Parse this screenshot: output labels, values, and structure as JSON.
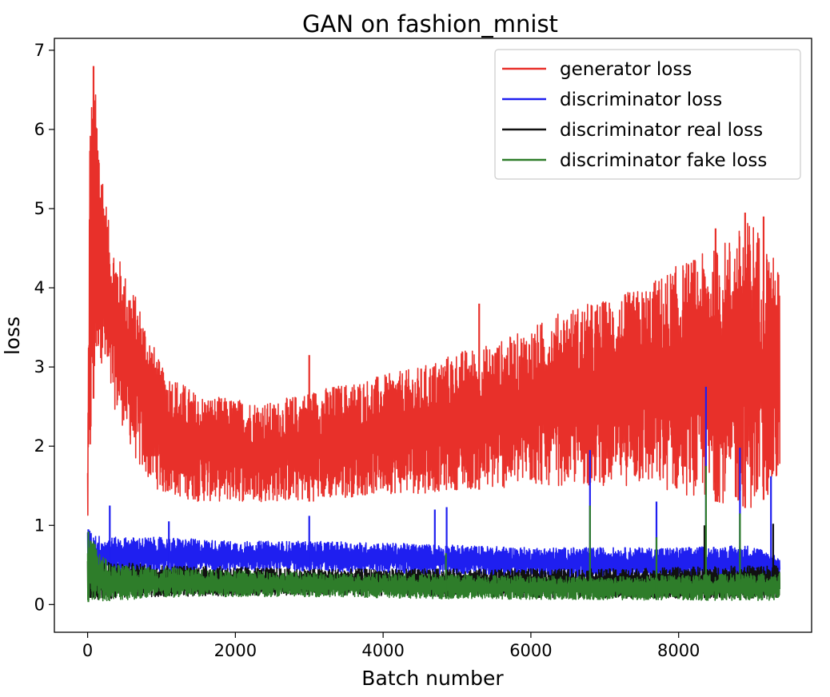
{
  "chart_data": {
    "type": "line",
    "title": "GAN on fashion_mnist",
    "xlabel": "Batch number",
    "ylabel": "loss",
    "xlim": [
      -450,
      9800
    ],
    "ylim": [
      -0.35,
      7.15
    ],
    "xticks": [
      0,
      2000,
      4000,
      6000,
      8000
    ],
    "xtick_labels": [
      "0",
      "2000",
      "4000",
      "6000",
      "8000"
    ],
    "yticks": [
      0,
      1,
      2,
      3,
      4,
      5,
      6,
      7
    ],
    "ytick_labels": [
      "0",
      "1",
      "2",
      "3",
      "4",
      "5",
      "6",
      "7"
    ],
    "grid": false,
    "legend_position": "top-right",
    "num_points": 9370,
    "series": [
      {
        "name": "generator loss",
        "color": "#e8302a",
        "envelope": {
          "x": [
            0,
            30,
            80,
            150,
            300,
            500,
            700,
            1000,
            1500,
            2000,
            2500,
            3000,
            3500,
            4000,
            4500,
            5000,
            5500,
            6000,
            6500,
            7000,
            7500,
            8000,
            8500,
            9000,
            9370
          ],
          "low": [
            0.9,
            1.4,
            2.6,
            3.2,
            2.6,
            2.2,
            1.7,
            1.4,
            1.3,
            1.3,
            1.3,
            1.3,
            1.35,
            1.4,
            1.4,
            1.45,
            1.45,
            1.5,
            1.5,
            1.5,
            1.5,
            1.4,
            1.3,
            1.2,
            1.5
          ],
          "high": [
            1.8,
            6.3,
            6.8,
            6.0,
            4.7,
            4.2,
            3.8,
            3.0,
            2.65,
            2.6,
            2.55,
            2.7,
            2.8,
            2.9,
            3.0,
            3.2,
            3.3,
            3.5,
            3.75,
            3.85,
            4.0,
            4.3,
            4.5,
            4.9,
            4.25
          ]
        },
        "spikes": [
          {
            "x": 80,
            "y": 6.8
          },
          {
            "x": 3000,
            "y": 3.15
          },
          {
            "x": 5300,
            "y": 3.8
          },
          {
            "x": 8500,
            "y": 4.75
          },
          {
            "x": 8900,
            "y": 4.95
          },
          {
            "x": 9150,
            "y": 4.9
          }
        ]
      },
      {
        "name": "discriminator loss",
        "color": "#1f1ff0",
        "envelope": {
          "x": [
            0,
            200,
            1000,
            2000,
            3000,
            4000,
            5000,
            6000,
            7000,
            8000,
            9000,
            9370
          ],
          "low": [
            0.35,
            0.35,
            0.4,
            0.42,
            0.42,
            0.4,
            0.38,
            0.35,
            0.33,
            0.32,
            0.3,
            0.32
          ],
          "high": [
            0.95,
            0.85,
            0.85,
            0.8,
            0.8,
            0.78,
            0.75,
            0.72,
            0.72,
            0.72,
            0.75,
            0.6
          ]
        },
        "spikes": [
          {
            "x": 10,
            "y": 0.95
          },
          {
            "x": 300,
            "y": 1.25
          },
          {
            "x": 1100,
            "y": 1.05
          },
          {
            "x": 3000,
            "y": 1.12
          },
          {
            "x": 4700,
            "y": 1.2
          },
          {
            "x": 4860,
            "y": 1.23
          },
          {
            "x": 6800,
            "y": 1.95
          },
          {
            "x": 7700,
            "y": 1.3
          },
          {
            "x": 8370,
            "y": 2.75
          },
          {
            "x": 8830,
            "y": 1.98
          },
          {
            "x": 9250,
            "y": 1.62
          }
        ]
      },
      {
        "name": "discriminator real loss",
        "color": "#111111",
        "envelope": {
          "x": [
            0,
            1000,
            3000,
            5000,
            7000,
            9370
          ],
          "low": [
            0.06,
            0.1,
            0.12,
            0.1,
            0.08,
            0.08
          ],
          "high": [
            0.55,
            0.5,
            0.45,
            0.45,
            0.45,
            0.5
          ]
        },
        "spikes": [
          {
            "x": 8350,
            "y": 1.0
          },
          {
            "x": 9280,
            "y": 1.02
          }
        ]
      },
      {
        "name": "discriminator fake loss",
        "color": "#2e7d2a",
        "envelope": {
          "x": [
            0,
            300,
            1500,
            3000,
            5000,
            7000,
            9370
          ],
          "low": [
            0.03,
            0.05,
            0.1,
            0.1,
            0.07,
            0.06,
            0.05
          ],
          "high": [
            0.9,
            0.5,
            0.45,
            0.4,
            0.38,
            0.35,
            0.4
          ]
        },
        "spikes": [
          {
            "x": 10,
            "y": 0.92
          },
          {
            "x": 4850,
            "y": 0.65
          },
          {
            "x": 6800,
            "y": 1.25
          },
          {
            "x": 7700,
            "y": 0.85
          },
          {
            "x": 8370,
            "y": 1.75
          },
          {
            "x": 8830,
            "y": 1.15
          }
        ]
      }
    ]
  }
}
